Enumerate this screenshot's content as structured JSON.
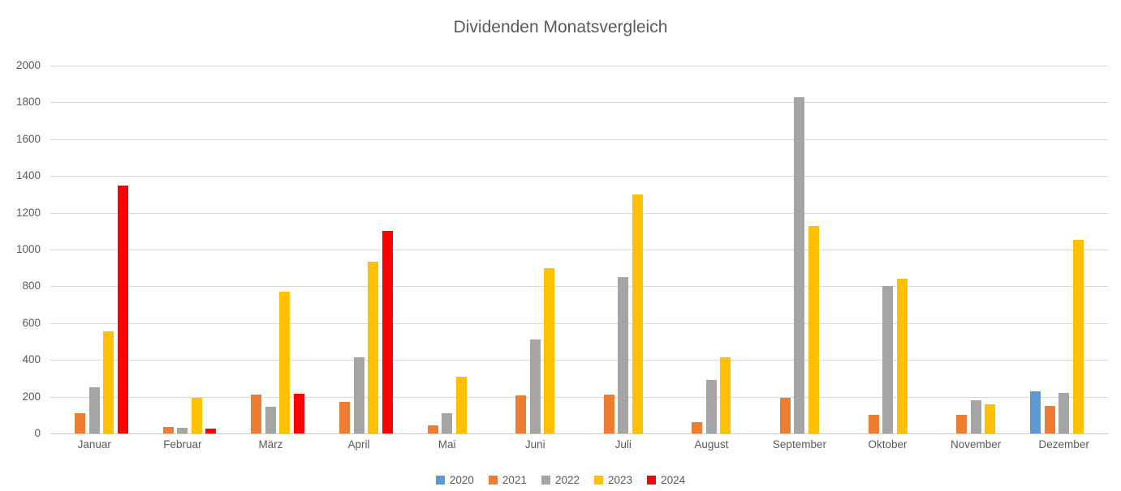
{
  "chart_data": {
    "type": "bar",
    "title": "Dividenden Monatsvergleich",
    "categories": [
      "Januar",
      "Februar",
      "März",
      "April",
      "Mai",
      "Juni",
      "Juli",
      "August",
      "September",
      "Oktober",
      "November",
      "Dezember"
    ],
    "series": [
      {
        "name": "2020",
        "color": "#5B9BD5",
        "values": [
          0,
          0,
          0,
          0,
          0,
          0,
          0,
          0,
          0,
          0,
          0,
          230
        ]
      },
      {
        "name": "2021",
        "color": "#ED7D31",
        "values": [
          110,
          35,
          210,
          170,
          45,
          205,
          210,
          60,
          195,
          100,
          100,
          150
        ]
      },
      {
        "name": "2022",
        "color": "#A5A5A5",
        "values": [
          250,
          30,
          145,
          415,
          110,
          510,
          850,
          290,
          1830,
          800,
          180,
          220
        ]
      },
      {
        "name": "2023",
        "color": "#FFC000",
        "values": [
          555,
          195,
          770,
          935,
          310,
          900,
          1300,
          415,
          1130,
          840,
          160,
          1055
        ]
      },
      {
        "name": "2024",
        "color": "#FF0000",
        "values": [
          1350,
          25,
          215,
          1100,
          0,
          0,
          0,
          0,
          0,
          0,
          0,
          0
        ]
      }
    ],
    "xlabel": "",
    "ylabel": "",
    "ylim": [
      0,
      2000
    ],
    "ytick_step": 200,
    "yticks": [
      0,
      200,
      400,
      600,
      800,
      1000,
      1200,
      1400,
      1600,
      1800,
      2000
    ],
    "grid": true,
    "legend_position": "bottom",
    "text_color": "#595959",
    "gridline_color": "#D9D9D9",
    "background_color": "#FFFFFF"
  }
}
